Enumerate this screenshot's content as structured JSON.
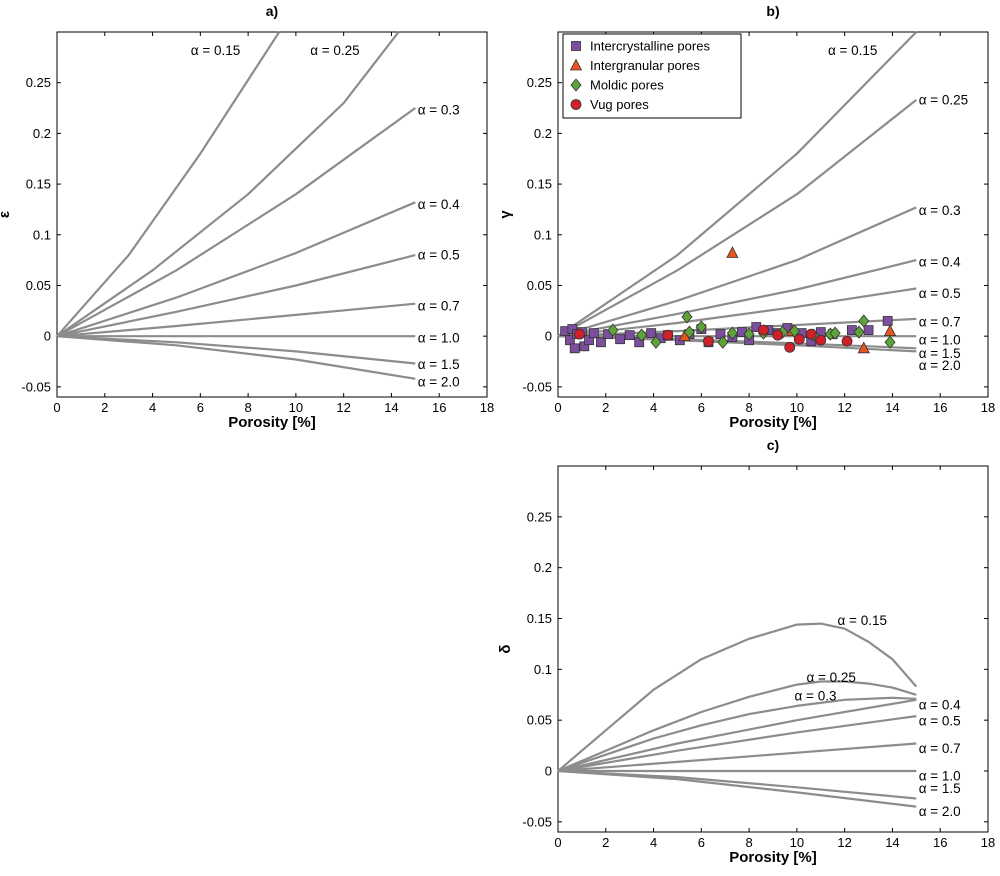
{
  "chart_data": [
    {
      "type": "line",
      "id": "a",
      "title": "a)",
      "xlabel": "Porosity [%]",
      "ylabel": "ε",
      "xlim": [
        0,
        18
      ],
      "ylim": [
        -0.06,
        0.3
      ],
      "xticks": [
        0,
        2,
        4,
        6,
        8,
        10,
        12,
        14,
        16,
        18
      ],
      "yticks": [
        -0.05,
        0,
        0.05,
        0.1,
        0.15,
        0.2,
        0.25
      ],
      "ytick_labels": [
        "-0.05",
        "0",
        "0.05",
        "0.1",
        "0.15",
        "0.2",
        "0.25"
      ],
      "series": [
        {
          "name": "α = 0.15",
          "x": [
            0,
            3,
            6,
            9.3
          ],
          "y": [
            0,
            0.08,
            0.18,
            0.3
          ]
        },
        {
          "name": "α = 0.25",
          "x": [
            0,
            4,
            8,
            12,
            14.3
          ],
          "y": [
            0,
            0.065,
            0.14,
            0.23,
            0.3
          ]
        },
        {
          "name": "α = 0.3",
          "x": [
            0,
            5,
            10,
            15
          ],
          "y": [
            0,
            0.065,
            0.14,
            0.225
          ]
        },
        {
          "name": "α = 0.4",
          "x": [
            0,
            5,
            10,
            15
          ],
          "y": [
            0,
            0.038,
            0.082,
            0.132
          ]
        },
        {
          "name": "α = 0.5",
          "x": [
            0,
            5,
            10,
            15
          ],
          "y": [
            0,
            0.024,
            0.05,
            0.08
          ]
        },
        {
          "name": "α = 0.7",
          "x": [
            0,
            5,
            10,
            15
          ],
          "y": [
            0,
            0.01,
            0.021,
            0.032
          ]
        },
        {
          "name": "α = 1.0",
          "x": [
            0,
            15
          ],
          "y": [
            0,
            0
          ]
        },
        {
          "name": "α = 1.5",
          "x": [
            0,
            5,
            10,
            15
          ],
          "y": [
            0,
            -0.006,
            -0.015,
            -0.027
          ]
        },
        {
          "name": "α = 2.0",
          "x": [
            0,
            5,
            10,
            15
          ],
          "y": [
            0,
            -0.009,
            -0.023,
            -0.042
          ]
        }
      ],
      "curve_labels": [
        {
          "text": "α = 0.15",
          "x": 5.6,
          "y": 0.282
        },
        {
          "text": "α = 0.25",
          "x": 10.6,
          "y": 0.282
        },
        {
          "text": "α = 0.3",
          "x": 15.1,
          "y": 0.223
        },
        {
          "text": "α = 0.4",
          "x": 15.1,
          "y": 0.13
        },
        {
          "text": "α = 0.5",
          "x": 15.1,
          "y": 0.08
        },
        {
          "text": "α = 0.7",
          "x": 15.1,
          "y": 0.03
        },
        {
          "text": "α = 1.0",
          "x": 15.1,
          "y": -0.002
        },
        {
          "text": "α = 1.5",
          "x": 15.1,
          "y": -0.028
        },
        {
          "text": "α = 2.0",
          "x": 15.1,
          "y": -0.045
        }
      ]
    },
    {
      "type": "line",
      "id": "b",
      "title": "b)",
      "xlabel": "Porosity [%]",
      "ylabel": "γ",
      "xlim": [
        0,
        18
      ],
      "ylim": [
        -0.06,
        0.3
      ],
      "xticks": [
        0,
        2,
        4,
        6,
        8,
        10,
        12,
        14,
        16,
        18
      ],
      "yticks": [
        -0.05,
        0,
        0.05,
        0.1,
        0.15,
        0.2,
        0.25
      ],
      "ytick_labels": [
        "-0.05",
        "0",
        "0.05",
        "0.1",
        "0.15",
        "0.2",
        "0.25"
      ],
      "series": [
        {
          "name": "α = 0.15",
          "x": [
            0,
            5,
            10,
            15
          ],
          "y": [
            0,
            0.08,
            0.18,
            0.3
          ]
        },
        {
          "name": "α = 0.25",
          "x": [
            0,
            5,
            10,
            15
          ],
          "y": [
            0,
            0.065,
            0.14,
            0.233
          ]
        },
        {
          "name": "α = 0.3",
          "x": [
            0,
            5,
            10,
            15
          ],
          "y": [
            0,
            0.035,
            0.075,
            0.127
          ]
        },
        {
          "name": "α = 0.4",
          "x": [
            0,
            5,
            10,
            15
          ],
          "y": [
            0,
            0.022,
            0.046,
            0.075
          ]
        },
        {
          "name": "α = 0.5",
          "x": [
            0,
            5,
            10,
            15
          ],
          "y": [
            0,
            0.013,
            0.029,
            0.047
          ]
        },
        {
          "name": "α = 0.7",
          "x": [
            0,
            5,
            10,
            15
          ],
          "y": [
            0,
            0.005,
            0.011,
            0.017
          ]
        },
        {
          "name": "α = 1.0",
          "x": [
            0,
            15
          ],
          "y": [
            0,
            0
          ]
        },
        {
          "name": "α = 1.5",
          "x": [
            0,
            5,
            10,
            15
          ],
          "y": [
            0,
            -0.003,
            -0.007,
            -0.012
          ]
        },
        {
          "name": "α = 2.0",
          "x": [
            0,
            5,
            10,
            15
          ],
          "y": [
            0,
            -0.004,
            -0.009,
            -0.015
          ]
        }
      ],
      "curve_labels": [
        {
          "text": "α = 0.15",
          "x": 11.3,
          "y": 0.282
        },
        {
          "text": "α = 0.25",
          "x": 15.1,
          "y": 0.233
        },
        {
          "text": "α = 0.3",
          "x": 15.1,
          "y": 0.124
        },
        {
          "text": "α = 0.4",
          "x": 15.1,
          "y": 0.073
        },
        {
          "text": "α = 0.5",
          "x": 15.1,
          "y": 0.042
        },
        {
          "text": "α = 0.7",
          "x": 15.1,
          "y": 0.014
        },
        {
          "text": "α = 1.0",
          "x": 15.1,
          "y": -0.004
        },
        {
          "text": "α = 1.5",
          "x": 15.1,
          "y": -0.017
        },
        {
          "text": "α = 2.0",
          "x": 15.1,
          "y": -0.029
        }
      ],
      "scatter": [
        {
          "name": "Intercrystalline pores",
          "marker": "square",
          "color": "#7b4f9e",
          "points": [
            [
              0.3,
              0.005
            ],
            [
              0.5,
              -0.004
            ],
            [
              0.6,
              0.007
            ],
            [
              0.7,
              -0.012
            ],
            [
              0.8,
              0.002
            ],
            [
              1.0,
              0.004
            ],
            [
              1.1,
              -0.01
            ],
            [
              1.3,
              -0.004
            ],
            [
              1.5,
              0.003
            ],
            [
              1.8,
              -0.006
            ],
            [
              2.1,
              0.002
            ],
            [
              2.6,
              -0.003
            ],
            [
              3.0,
              0.001
            ],
            [
              3.4,
              -0.006
            ],
            [
              3.9,
              0.003
            ],
            [
              4.3,
              -0.002
            ],
            [
              4.6,
              0.001
            ],
            [
              5.1,
              -0.004
            ],
            [
              5.5,
              0.002
            ],
            [
              6.0,
              0.007
            ],
            [
              6.3,
              -0.006
            ],
            [
              6.8,
              0.002
            ],
            [
              7.3,
              -0.001
            ],
            [
              7.7,
              0.004
            ],
            [
              8.0,
              -0.004
            ],
            [
              8.3,
              0.009
            ],
            [
              8.8,
              0.006
            ],
            [
              9.2,
              0.003
            ],
            [
              9.6,
              0.008
            ],
            [
              10.2,
              0.003
            ],
            [
              10.6,
              -0.005
            ],
            [
              11.0,
              0.004
            ],
            [
              11.5,
              0.002
            ],
            [
              12.3,
              0.006
            ],
            [
              13.0,
              0.006
            ],
            [
              13.8,
              0.015
            ]
          ]
        },
        {
          "name": "Intergranular pores",
          "marker": "triangle",
          "color": "#e8541d",
          "points": [
            [
              7.3,
              0.082
            ],
            [
              9.8,
              0.005
            ],
            [
              12.8,
              -0.012
            ],
            [
              13.9,
              0.005
            ],
            [
              5.3,
              0.0
            ]
          ]
        },
        {
          "name": "Moldic pores",
          "marker": "diamond",
          "color": "#5da33a",
          "points": [
            [
              2.3,
              0.006
            ],
            [
              3.5,
              0.001
            ],
            [
              4.1,
              -0.006
            ],
            [
              5.4,
              0.019
            ],
            [
              5.5,
              0.004
            ],
            [
              6.0,
              0.009
            ],
            [
              6.9,
              -0.006
            ],
            [
              7.3,
              0.003
            ],
            [
              8.0,
              0.002
            ],
            [
              8.6,
              0.003
            ],
            [
              9.4,
              0.004
            ],
            [
              9.9,
              0.005
            ],
            [
              10.7,
              0.001
            ],
            [
              11.4,
              0.002
            ],
            [
              11.6,
              0.003
            ],
            [
              12.6,
              0.004
            ],
            [
              12.8,
              0.015
            ],
            [
              13.9,
              -0.006
            ]
          ]
        },
        {
          "name": "Vug pores",
          "marker": "circle",
          "color": "#d0202a",
          "points": [
            [
              0.9,
              0.002
            ],
            [
              4.6,
              0.001
            ],
            [
              6.3,
              -0.005
            ],
            [
              8.6,
              0.006
            ],
            [
              9.2,
              0.001
            ],
            [
              9.7,
              -0.011
            ],
            [
              10.1,
              -0.003
            ],
            [
              10.6,
              0.002
            ],
            [
              11.0,
              -0.004
            ],
            [
              12.1,
              -0.005
            ]
          ]
        }
      ],
      "legend": {
        "placement": "top-left",
        "entries": [
          {
            "label": "Intercrystalline pores",
            "marker": "square",
            "color": "#7b4f9e"
          },
          {
            "label": "Intergranular pores",
            "marker": "triangle",
            "color": "#e8541d"
          },
          {
            "label": "Moldic pores",
            "marker": "diamond",
            "color": "#5da33a"
          },
          {
            "label": "Vug pores",
            "marker": "circle",
            "color": "#d0202a"
          }
        ]
      }
    },
    {
      "type": "line",
      "id": "c",
      "title": "c)",
      "xlabel": "Porosity [%]",
      "ylabel": "δ",
      "xlim": [
        0,
        18
      ],
      "ylim": [
        -0.06,
        0.3
      ],
      "xticks": [
        0,
        2,
        4,
        6,
        8,
        10,
        12,
        14,
        16,
        18
      ],
      "yticks": [
        -0.05,
        0,
        0.05,
        0.1,
        0.15,
        0.2,
        0.25
      ],
      "ytick_labels": [
        "-0.05",
        "0",
        "0.05",
        "0.1",
        "0.15",
        "0.2",
        "0.25"
      ],
      "series": [
        {
          "name": "α = 0.15",
          "x": [
            0,
            2,
            4,
            6,
            8,
            10,
            11,
            12,
            13,
            14,
            15
          ],
          "y": [
            0,
            0.04,
            0.08,
            0.11,
            0.13,
            0.144,
            0.145,
            0.14,
            0.127,
            0.11,
            0.083
          ]
        },
        {
          "name": "α = 0.25",
          "x": [
            0,
            2,
            4,
            6,
            8,
            10,
            11,
            12,
            13,
            14,
            15
          ],
          "y": [
            0,
            0.02,
            0.04,
            0.058,
            0.073,
            0.085,
            0.088,
            0.088,
            0.086,
            0.082,
            0.075
          ]
        },
        {
          "name": "α = 0.3",
          "x": [
            0,
            2,
            4,
            6,
            8,
            10,
            12,
            14,
            15
          ],
          "y": [
            0,
            0.016,
            0.032,
            0.045,
            0.056,
            0.064,
            0.07,
            0.072,
            0.071
          ]
        },
        {
          "name": "α = 0.4",
          "x": [
            0,
            5,
            10,
            15
          ],
          "y": [
            0,
            0.027,
            0.05,
            0.07
          ]
        },
        {
          "name": "α = 0.5",
          "x": [
            0,
            5,
            10,
            15
          ],
          "y": [
            0,
            0.02,
            0.038,
            0.054
          ]
        },
        {
          "name": "α = 0.7",
          "x": [
            0,
            5,
            10,
            15
          ],
          "y": [
            0,
            0.009,
            0.018,
            0.027
          ]
        },
        {
          "name": "α = 1.0",
          "x": [
            0,
            15
          ],
          "y": [
            0,
            0
          ]
        },
        {
          "name": "α = 1.5",
          "x": [
            0,
            5,
            10,
            15
          ],
          "y": [
            0,
            -0.006,
            -0.016,
            -0.027
          ]
        },
        {
          "name": "α = 2.0",
          "x": [
            0,
            5,
            10,
            15
          ],
          "y": [
            0,
            -0.008,
            -0.021,
            -0.035
          ]
        }
      ],
      "curve_labels": [
        {
          "text": "α = 0.15",
          "x": 11.7,
          "y": 0.148
        },
        {
          "text": "α = 0.25",
          "x": 10.4,
          "y": 0.092
        },
        {
          "text": "α = 0.3",
          "x": 9.9,
          "y": 0.074
        },
        {
          "text": "α = 0.4",
          "x": 15.1,
          "y": 0.065
        },
        {
          "text": "α = 0.5",
          "x": 15.1,
          "y": 0.049
        },
        {
          "text": "α = 0.7",
          "x": 15.1,
          "y": 0.022
        },
        {
          "text": "α = 1.0",
          "x": 15.1,
          "y": -0.005
        },
        {
          "text": "α = 1.5",
          "x": 15.1,
          "y": -0.017
        },
        {
          "text": "α = 2.0",
          "x": 15.1,
          "y": -0.04
        }
      ]
    }
  ]
}
